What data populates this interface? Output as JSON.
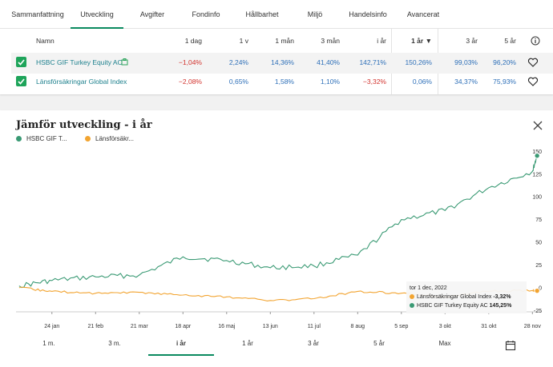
{
  "tabs": [
    "Sammanfattning",
    "Utveckling",
    "Avgifter",
    "Fondinfo",
    "Hållbarhet",
    "Miljö",
    "Handelsinfo",
    "Avancerat"
  ],
  "table": {
    "headers": [
      "Namn",
      "1 dag",
      "1 v",
      "1 mån",
      "3 mån",
      "i år",
      "1 år ▼",
      "3 år",
      "5 år"
    ],
    "rows": [
      {
        "name": "HSBC GIF Turkey Equity AC",
        "values": [
          "−1,04%",
          "2,24%",
          "14,36%",
          "41,40%",
          "142,71%",
          "150,26%",
          "99,03%",
          "96,20%"
        ]
      },
      {
        "name": "Länsförsäkringar Global Index",
        "values": [
          "−2,08%",
          "0,65%",
          "1,58%",
          "1,10%",
          "−3,32%",
          "0,06%",
          "34,37%",
          "75,93%"
        ]
      }
    ]
  },
  "chart": {
    "title": "Jämför utveckling - i år",
    "legend": [
      {
        "name": "HSBC GIF T...",
        "color": "#3a9a74"
      },
      {
        "name": "Länsförsäkr...",
        "color": "#f2a431"
      }
    ],
    "tooltip": {
      "date": "tor 1 dec, 2022",
      "line1_label": "Länsförsäkringar Global Index",
      "line1_value": "-3,32%",
      "line2_label": "HSBC GIF Turkey Equity AC",
      "line2_value": "145,25%"
    },
    "ranges": [
      "1 m.",
      "3 m.",
      "i år",
      "1 år",
      "3 år",
      "5 år",
      "Max"
    ],
    "active_range": "i år"
  },
  "chart_data": {
    "type": "line",
    "x_ticks": [
      "24 jan",
      "21 feb",
      "21 mar",
      "18 apr",
      "16 maj",
      "13 jun",
      "11 jul",
      "8 aug",
      "5 sep",
      "3 okt",
      "31 okt",
      "28 nov"
    ],
    "y_ticks": [
      150,
      125,
      100,
      75,
      50,
      25,
      0,
      -25
    ],
    "ylim": [
      -30,
      160
    ],
    "series": [
      {
        "name": "HSBC GIF Turkey Equity AC",
        "color": "#3a9a74",
        "x": [
          "2022-01-03",
          "2022-01-24",
          "2022-02-21",
          "2022-03-21",
          "2022-04-18",
          "2022-05-16",
          "2022-06-13",
          "2022-07-11",
          "2022-08-08",
          "2022-09-05",
          "2022-10-03",
          "2022-10-31",
          "2022-11-28",
          "2022-12-01"
        ],
        "values": [
          2,
          8,
          12,
          14,
          34,
          30,
          22,
          24,
          36,
          75,
          85,
          110,
          128,
          145.25
        ]
      },
      {
        "name": "Länsförsäkringar Global Index",
        "color": "#f2a431",
        "x": [
          "2022-01-03",
          "2022-01-24",
          "2022-02-21",
          "2022-03-21",
          "2022-04-18",
          "2022-05-16",
          "2022-06-13",
          "2022-07-11",
          "2022-08-08",
          "2022-09-05",
          "2022-10-03",
          "2022-10-31",
          "2022-11-28",
          "2022-12-01"
        ],
        "values": [
          0,
          -4,
          -6,
          -5,
          -8,
          -10,
          -14,
          -12,
          -4,
          -6,
          -10,
          -4,
          -3,
          -3.32
        ]
      }
    ]
  }
}
